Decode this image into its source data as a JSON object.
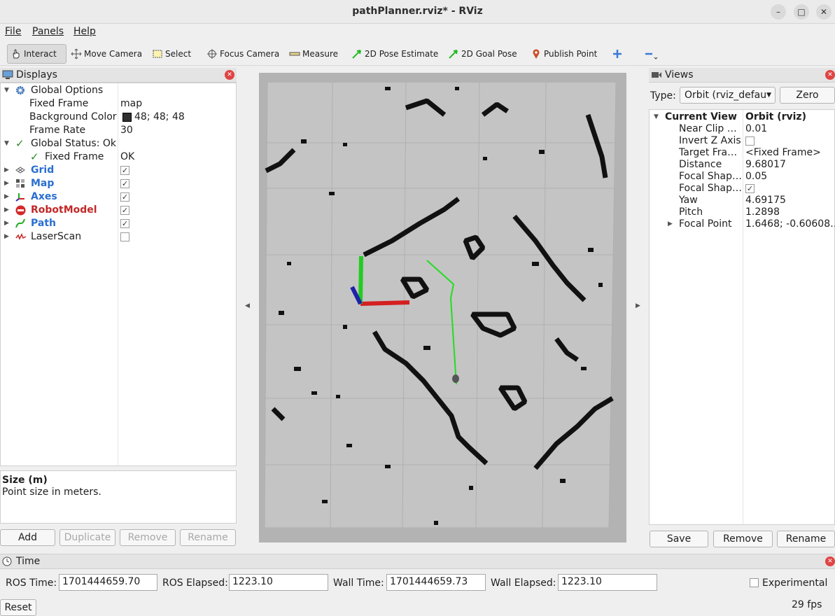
{
  "window": {
    "title": "pathPlanner.rviz* - RViz"
  },
  "menu": {
    "file": "File",
    "panels": "Panels",
    "help": "Help"
  },
  "toolbar": {
    "interact": "Interact",
    "move_camera": "Move Camera",
    "select": "Select",
    "focus_camera": "Focus Camera",
    "measure": "Measure",
    "pose_estimate": "2D Pose Estimate",
    "goal_pose": "2D Goal Pose",
    "publish_point": "Publish Point"
  },
  "displays": {
    "header": "Displays",
    "global_options": "Global Options",
    "fixed_frame_label": "Fixed Frame",
    "fixed_frame_value": "map",
    "bg_color_label": "Background Color",
    "bg_color_value": "48; 48; 48",
    "frame_rate_label": "Frame Rate",
    "frame_rate_value": "30",
    "global_status": "Global Status: Ok",
    "status_fixed_frame": "Fixed Frame",
    "status_fixed_frame_value": "OK",
    "items": [
      {
        "label": "Grid",
        "checked": true
      },
      {
        "label": "Map",
        "checked": true
      },
      {
        "label": "Axes",
        "checked": true
      },
      {
        "label": "RobotModel",
        "checked": true
      },
      {
        "label": "Path",
        "checked": true
      },
      {
        "label": "LaserScan",
        "checked": false
      }
    ],
    "desc_title": "Size (m)",
    "desc_text": "Point size in meters.",
    "buttons": {
      "add": "Add",
      "duplicate": "Duplicate",
      "remove": "Remove",
      "rename": "Rename"
    }
  },
  "views": {
    "header": "Views",
    "type_label": "Type:",
    "type_value": "Orbit (rviz_defau",
    "zero": "Zero",
    "current_view_label": "Current View",
    "current_view_value": "Orbit (rviz)",
    "props": [
      {
        "label": "Near Clip …",
        "value": "0.01"
      },
      {
        "label": "Invert Z Axis",
        "value": ""
      },
      {
        "label": "Target Fra…",
        "value": "<Fixed Frame>"
      },
      {
        "label": "Distance",
        "value": "9.68017"
      },
      {
        "label": "Focal Shap…",
        "value": "0.05"
      },
      {
        "label": "Focal Shap…",
        "value": ""
      },
      {
        "label": "Yaw",
        "value": "4.69175"
      },
      {
        "label": "Pitch",
        "value": "1.2898"
      },
      {
        "label": "Focal Point",
        "value": "1.6468; -0.60608…"
      }
    ],
    "buttons": {
      "save": "Save",
      "remove": "Remove",
      "rename": "Rename"
    }
  },
  "time": {
    "header": "Time",
    "ros_time_label": "ROS Time:",
    "ros_time": "1701444659.70",
    "ros_elapsed_label": "ROS Elapsed:",
    "ros_elapsed": "1223.10",
    "wall_time_label": "Wall Time:",
    "wall_time": "1701444659.73",
    "wall_elapsed_label": "Wall Elapsed:",
    "wall_elapsed": "1223.10",
    "experimental": "Experimental",
    "reset": "Reset",
    "fps": "29 fps"
  },
  "colors": {
    "accent": "#2a6fd0",
    "robot": "#c22828",
    "path": "#22dd22"
  }
}
